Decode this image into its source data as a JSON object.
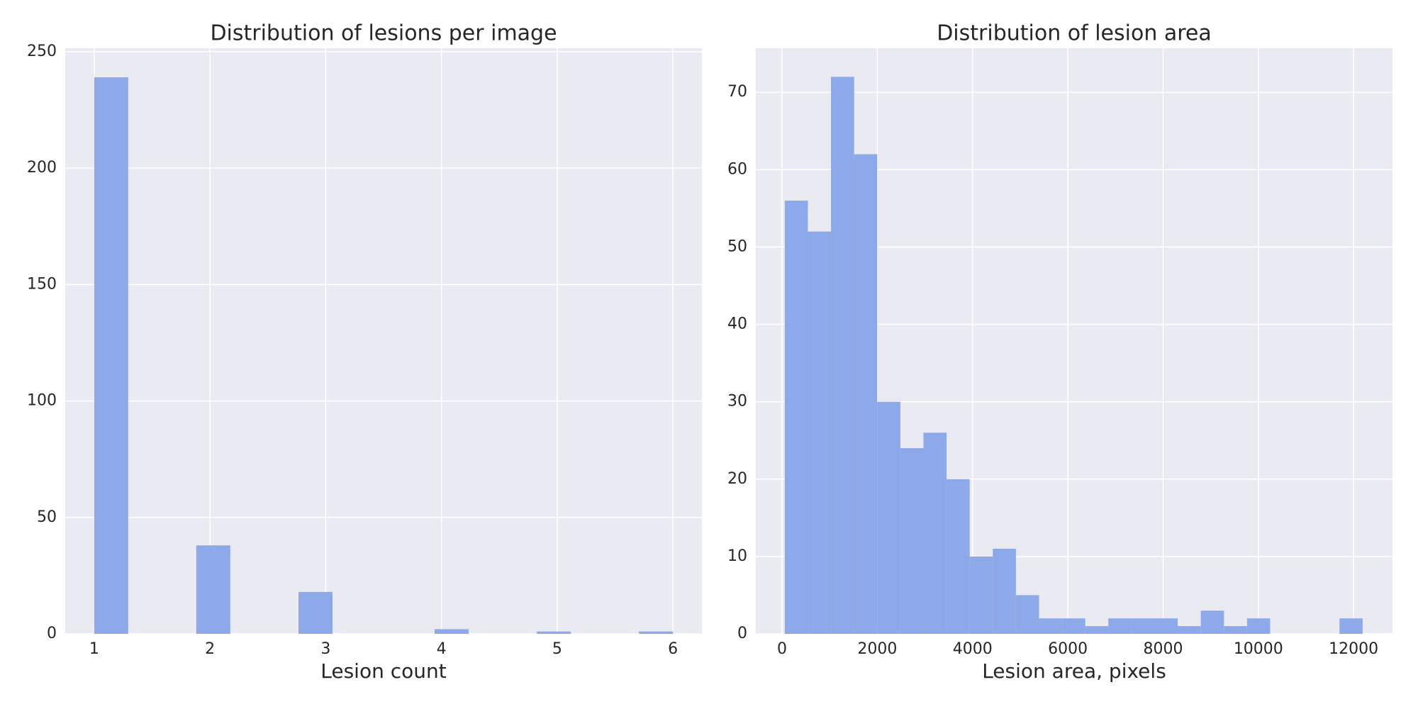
{
  "chart_data": [
    {
      "type": "histogram",
      "title": "Distribution of lesions per image",
      "xlabel": "Lesion count",
      "bins": [
        1,
        1.294,
        1.588,
        1.882,
        2.176,
        2.471,
        2.765,
        3.059,
        3.353,
        3.647,
        3.941,
        4.235,
        4.529,
        4.824,
        5.118,
        5.412,
        5.706,
        6
      ],
      "values": [
        239,
        0,
        0,
        38,
        0,
        0,
        18,
        0,
        0,
        0,
        2,
        0,
        0,
        1,
        0,
        0,
        1
      ],
      "color": "#8ea9ea",
      "xlim": [
        0.75,
        6.25
      ],
      "xticks": [
        1,
        2,
        3,
        4,
        5,
        6
      ],
      "ylim": [
        0,
        251.5
      ],
      "yticks": [
        0,
        50,
        100,
        150,
        200,
        250
      ],
      "grid": true
    },
    {
      "type": "histogram",
      "title": "Distribution of lesion area",
      "xlabel": "Lesion area, pixels",
      "bins": [
        57,
        542,
        1028,
        1513,
        1998,
        2484,
        2969,
        3454,
        3939,
        4425,
        4910,
        5395,
        5881,
        6366,
        6851,
        7336,
        7822,
        8307,
        8792,
        9278,
        9763,
        10248,
        10733,
        11219,
        11704,
        12189
      ],
      "values": [
        56,
        52,
        72,
        62,
        30,
        24,
        26,
        20,
        10,
        11,
        5,
        2,
        2,
        1,
        2,
        2,
        2,
        1,
        3,
        1,
        2,
        0,
        0,
        0,
        2
      ],
      "color": "#8ea9ea",
      "xlim": [
        -551,
        12816
      ],
      "xticks": [
        0,
        2000,
        4000,
        6000,
        8000,
        10000,
        12000
      ],
      "ylim": [
        0,
        75.7
      ],
      "yticks": [
        0,
        10,
        20,
        30,
        40,
        50,
        60,
        70
      ],
      "grid": true
    }
  ]
}
